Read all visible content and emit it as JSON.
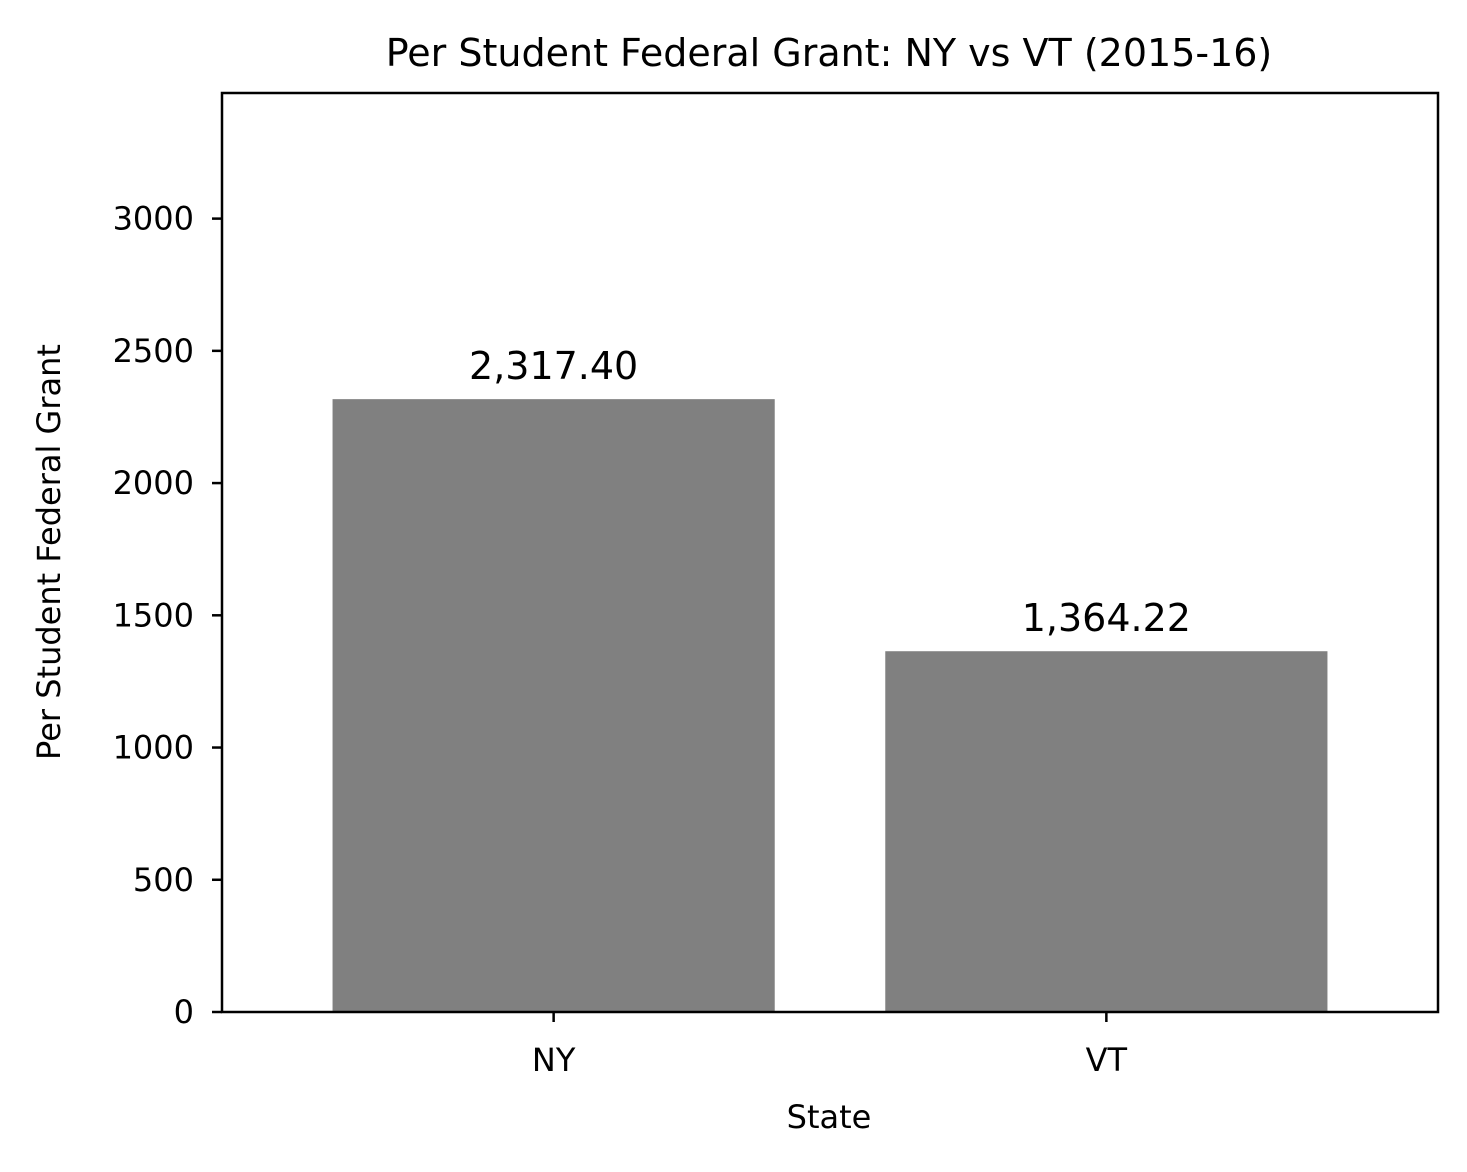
{
  "chart_data": {
    "type": "bar",
    "title": "Per Student Federal Grant: NY vs VT (2015-16)",
    "xlabel": "State",
    "ylabel": "Per Student Federal Grant",
    "categories": [
      "NY",
      "VT"
    ],
    "values": [
      2317.4,
      1364.22
    ],
    "data_labels": [
      "2,317.40",
      "1,364.22"
    ],
    "ylim": [
      0,
      3475
    ],
    "yticks": [
      0,
      500,
      1000,
      1500,
      2000,
      2500,
      3000
    ],
    "ytick_labels": [
      "0",
      "500",
      "1000",
      "1500",
      "2000",
      "2500",
      "3000"
    ],
    "grid": false,
    "legend": "none",
    "bar_color": "#808080"
  }
}
